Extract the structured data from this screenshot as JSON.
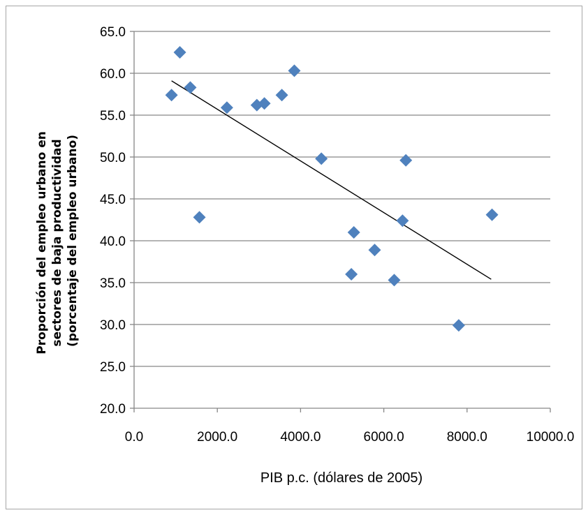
{
  "chart_data": {
    "type": "scatter",
    "title": "",
    "xlabel": "PIB p.c. (dólares de 2005)",
    "ylabel_lines": [
      "Proporción del empleo urbano en",
      "sectores de baja productividad",
      "(porcentaje del empleo urbano)"
    ],
    "xlim": [
      0,
      10000
    ],
    "ylim": [
      20,
      65
    ],
    "x_ticks": [
      "0.0",
      "2000.0",
      "4000.0",
      "6000.0",
      "8000.0",
      "10000.0"
    ],
    "x_tick_values": [
      0,
      2000,
      4000,
      6000,
      8000,
      10000
    ],
    "y_ticks": [
      "20.0",
      "25.0",
      "30.0",
      "35.0",
      "40.0",
      "45.0",
      "50.0",
      "55.0",
      "60.0",
      "65.0"
    ],
    "y_tick_values": [
      20,
      25,
      30,
      35,
      40,
      45,
      50,
      55,
      60,
      65
    ],
    "grid": true,
    "marker": "diamond",
    "marker_color": "#4f81bd",
    "trendline_color": "#000000",
    "points": [
      {
        "x": 900,
        "y": 57.4
      },
      {
        "x": 1100,
        "y": 62.5
      },
      {
        "x": 1350,
        "y": 58.3
      },
      {
        "x": 1570,
        "y": 42.8
      },
      {
        "x": 2230,
        "y": 55.9
      },
      {
        "x": 2950,
        "y": 56.2
      },
      {
        "x": 3130,
        "y": 56.4
      },
      {
        "x": 3550,
        "y": 57.4
      },
      {
        "x": 3850,
        "y": 60.3
      },
      {
        "x": 4500,
        "y": 49.8
      },
      {
        "x": 5220,
        "y": 36.0
      },
      {
        "x": 5280,
        "y": 41.0
      },
      {
        "x": 5780,
        "y": 38.9
      },
      {
        "x": 6250,
        "y": 35.3
      },
      {
        "x": 6450,
        "y": 42.4
      },
      {
        "x": 6530,
        "y": 49.6
      },
      {
        "x": 7800,
        "y": 29.9
      },
      {
        "x": 8600,
        "y": 43.1
      }
    ],
    "trendline": {
      "x": [
        900,
        8580
      ],
      "y": [
        59.1,
        35.4
      ]
    }
  }
}
